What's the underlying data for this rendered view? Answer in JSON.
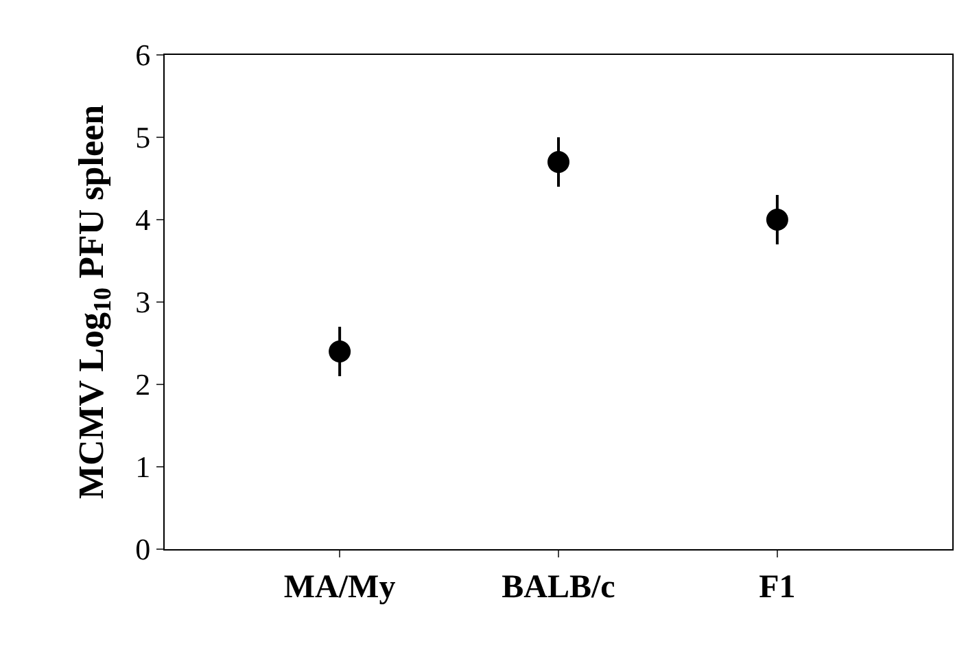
{
  "chart_data": {
    "type": "scatter",
    "ylabel": "MCMV Log$_{10}$ PFU spleen",
    "categories": [
      "MA/My",
      "BALB/c",
      "F1"
    ],
    "series": [
      {
        "color": "#000000",
        "values": [
          2.4,
          4.7,
          4.0
        ],
        "errors": [
          0.3,
          0.3,
          0.3
        ]
      }
    ],
    "ylim": [
      0,
      6
    ],
    "yticks": [
      0,
      1,
      2,
      3,
      4,
      5,
      6
    ],
    "marker": "circle"
  }
}
